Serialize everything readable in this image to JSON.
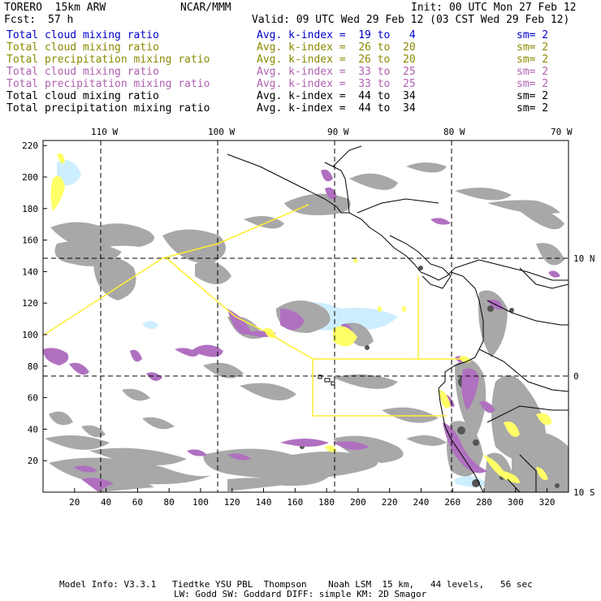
{
  "header": {
    "model": "TORERO  15km ARW",
    "org": "NCAR/MMM",
    "init": "Init: 00 UTC Mon 27 Feb 12",
    "fcst_label": "Fcst:",
    "fcst_value": "57 h",
    "valid": "Valid: 09 UTC Wed 29 Feb 12 (03 CST Wed 29 Feb 12)"
  },
  "legend": [
    {
      "field": "Total cloud mixing ratio",
      "kindex": "Avg. k-index =  19 to   4",
      "sm": "sm= 2",
      "color": "#0000cc"
    },
    {
      "field": "Total cloud mixing ratio",
      "kindex": "Avg. k-index =  26 to  20",
      "sm": "sm= 2",
      "color": "#8a8a00"
    },
    {
      "field": "Total precipitation mixing ratio",
      "kindex": "Avg. k-index =  26 to  20",
      "sm": "sm= 2",
      "color": "#8a8a00"
    },
    {
      "field": "Total cloud mixing ratio",
      "kindex": "Avg. k-index =  33 to  25",
      "sm": "sm= 2",
      "color": "#b060b0"
    },
    {
      "field": "Total precipitation mixing ratio",
      "kindex": "Avg. k-index =  33 to  25",
      "sm": "sm= 2",
      "color": "#b060b0"
    },
    {
      "field": "Total cloud mixing ratio",
      "kindex": "Avg. k-index =  44 to  34",
      "sm": "sm= 2",
      "color": "#000000"
    },
    {
      "field": "Total precipitation mixing ratio",
      "kindex": "Avg. k-index =  44 to  34",
      "sm": "sm= 2",
      "color": "#000000"
    }
  ],
  "axes": {
    "longitude_labels": [
      "110 W",
      "100 W",
      "90 W",
      "80 W",
      "70 W"
    ],
    "latitude_labels": [
      "10 N",
      "0",
      "10 S"
    ],
    "x_ticks": [
      "20",
      "40",
      "60",
      "80",
      "100",
      "120",
      "140",
      "160",
      "180",
      "200",
      "220",
      "240",
      "260",
      "280",
      "300",
      "320"
    ],
    "y_ticks": [
      "20",
      "40",
      "60",
      "80",
      "100",
      "120",
      "140",
      "160",
      "180",
      "200",
      "220"
    ]
  },
  "footer": {
    "line1": "Model Info: V3.3.1   Tiedtke YSU PBL  Thompson    Noah LSM  15 km,   44 levels,   56 sec",
    "line2": "LW: Godd SW: Goddard DIFF: simple KM: 2D Smagor"
  },
  "colors": {
    "gray_cloud": "#a8a8a8",
    "dark_cloud": "#555555",
    "purple": "#b070c0",
    "yellow": "#ffff66",
    "light_blue": "#cceeff",
    "outline_yellow": "#ffee33"
  }
}
